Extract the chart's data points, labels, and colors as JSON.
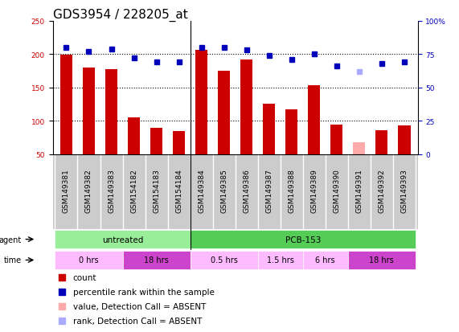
{
  "title": "GDS3954 / 228205_at",
  "samples": [
    "GSM149381",
    "GSM149382",
    "GSM149383",
    "GSM154182",
    "GSM154183",
    "GSM154184",
    "GSM149384",
    "GSM149385",
    "GSM149386",
    "GSM149387",
    "GSM149388",
    "GSM149389",
    "GSM149390",
    "GSM149391",
    "GSM149392",
    "GSM149393"
  ],
  "bar_values": [
    199,
    180,
    178,
    105,
    89,
    85,
    207,
    175,
    192,
    125,
    117,
    153,
    94,
    68,
    86,
    93
  ],
  "bar_colors": [
    "#cc0000",
    "#cc0000",
    "#cc0000",
    "#cc0000",
    "#cc0000",
    "#cc0000",
    "#cc0000",
    "#cc0000",
    "#cc0000",
    "#cc0000",
    "#cc0000",
    "#cc0000",
    "#cc0000",
    "#ffaaaa",
    "#cc0000",
    "#cc0000"
  ],
  "percentile_values": [
    80,
    77,
    79,
    72,
    69,
    69,
    80,
    80,
    78,
    74,
    71,
    75,
    66,
    62,
    68,
    69
  ],
  "percentile_colors": [
    "#0000bb",
    "#0000bb",
    "#0000bb",
    "#0000bb",
    "#0000bb",
    "#0000bb",
    "#0000bb",
    "#0000bb",
    "#0000bb",
    "#0000bb",
    "#0000bb",
    "#0000bb",
    "#0000bb",
    "#aaaaff",
    "#0000bb",
    "#0000bb"
  ],
  "ylim_left": [
    50,
    250
  ],
  "ylim_right": [
    0,
    100
  ],
  "yticks_left": [
    50,
    100,
    150,
    200,
    250
  ],
  "yticks_right": [
    0,
    25,
    50,
    75,
    100
  ],
  "hlines": [
    100,
    150,
    200
  ],
  "agent_groups": [
    {
      "label": "untreated",
      "start": 0,
      "end": 6,
      "color": "#99ee99"
    },
    {
      "label": "PCB-153",
      "start": 6,
      "end": 16,
      "color": "#55cc55"
    }
  ],
  "time_groups": [
    {
      "label": "0 hrs",
      "start": 0,
      "end": 3,
      "color": "#ffbbff"
    },
    {
      "label": "18 hrs",
      "start": 3,
      "end": 6,
      "color": "#cc44cc"
    },
    {
      "label": "0.5 hrs",
      "start": 6,
      "end": 9,
      "color": "#ffbbff"
    },
    {
      "label": "1.5 hrs",
      "start": 9,
      "end": 11,
      "color": "#ffbbff"
    },
    {
      "label": "6 hrs",
      "start": 11,
      "end": 13,
      "color": "#ffbbff"
    },
    {
      "label": "18 hrs",
      "start": 13,
      "end": 16,
      "color": "#cc44cc"
    }
  ],
  "legend_items": [
    {
      "label": "count",
      "color": "#cc0000"
    },
    {
      "label": "percentile rank within the sample",
      "color": "#0000bb"
    },
    {
      "label": "value, Detection Call = ABSENT",
      "color": "#ffaaaa"
    },
    {
      "label": "rank, Detection Call = ABSENT",
      "color": "#aaaaff"
    }
  ],
  "bar_width": 0.55,
  "sample_bg_color": "#cccccc",
  "plot_bg_color": "#ffffff",
  "title_fontsize": 11,
  "tick_fontsize": 6.5,
  "label_fontsize": 7.5
}
